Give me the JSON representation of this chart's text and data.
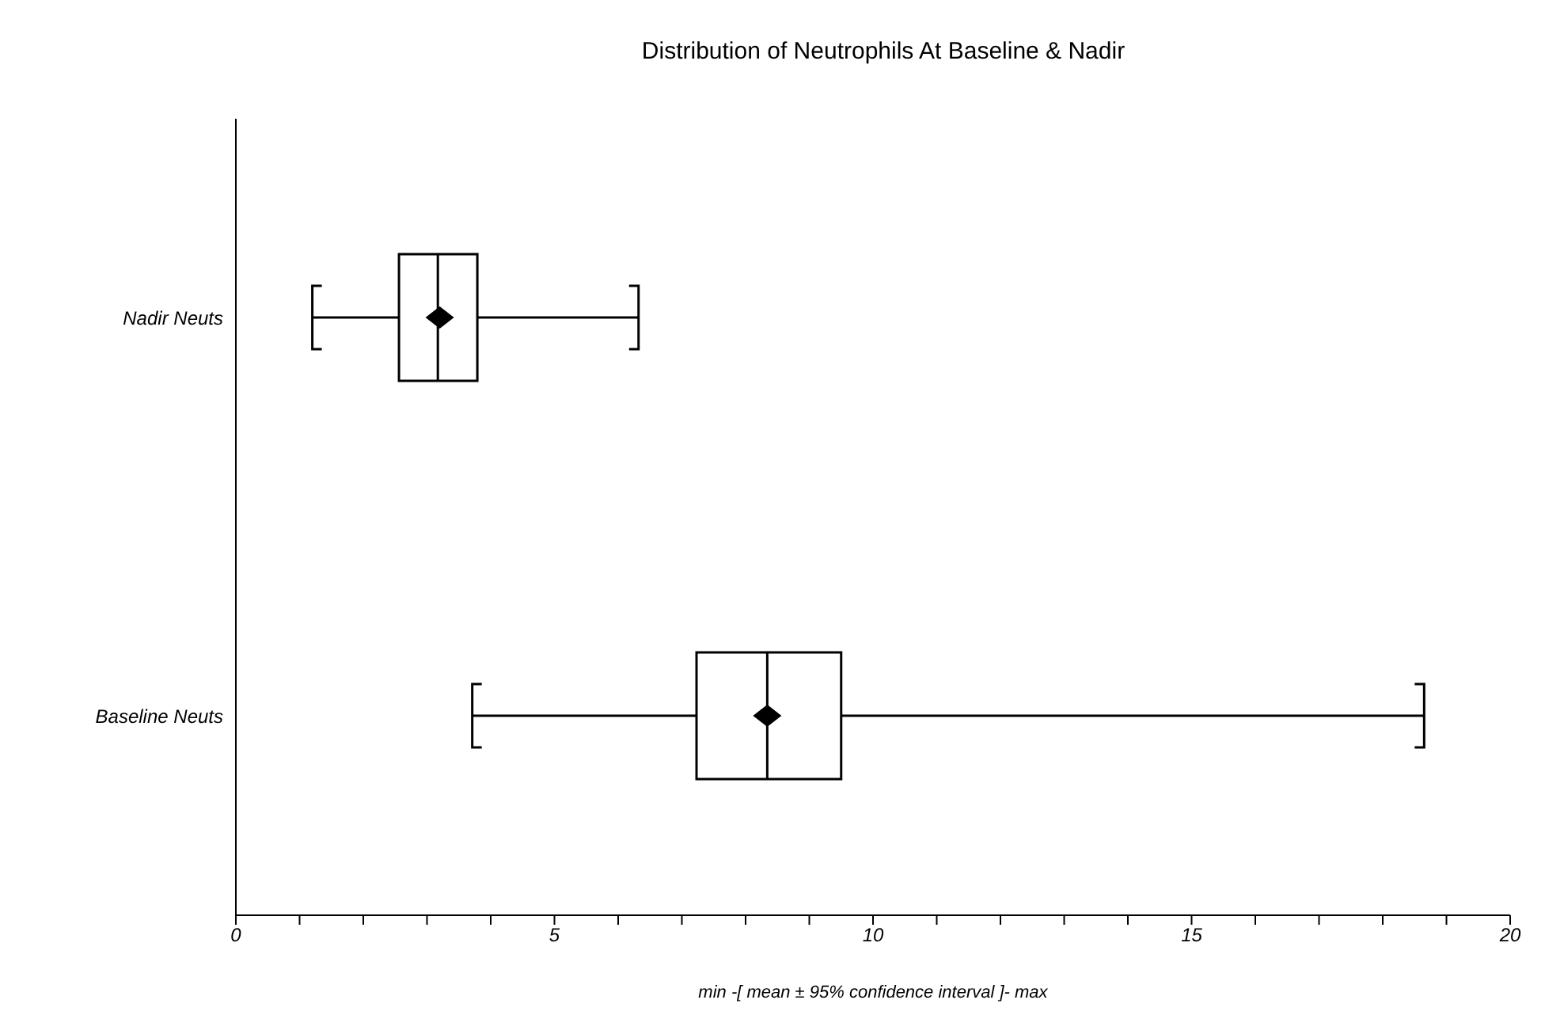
{
  "chart_data": {
    "type": "box",
    "title": "Distribution of Neutrophils At Baseline & Nadir",
    "xlabel": "min -[ mean ± 95% confidence interval ]- max",
    "orientation": "horizontal",
    "categories": [
      "Nadir Neuts",
      "Baseline Neuts"
    ],
    "boxes": [
      {
        "low": 1.2,
        "q1": 2.56,
        "median": 3.17,
        "q3": 3.79,
        "high": 6.32,
        "mean": 3.2
      },
      {
        "low": 3.71,
        "q1": 7.23,
        "median": 8.34,
        "q3": 9.5,
        "high": 18.65,
        "mean": 8.34
      }
    ],
    "xlim": [
      0,
      20
    ],
    "xticks": [
      0,
      {
        "value": 1,
        "label": null
      },
      {
        "value": 2,
        "label": null
      },
      {
        "value": 3,
        "label": null
      },
      {
        "value": 4,
        "label": null
      },
      5,
      {
        "value": 6,
        "label": null
      },
      {
        "value": 7,
        "label": null
      },
      {
        "value": 8,
        "label": null
      },
      {
        "value": 9,
        "label": null
      },
      10,
      {
        "value": 11,
        "label": null
      },
      {
        "value": 12,
        "label": null
      },
      {
        "value": 13,
        "label": null
      },
      {
        "value": 14,
        "label": null
      },
      15,
      {
        "value": 16,
        "label": null
      },
      {
        "value": 17,
        "label": null
      },
      {
        "value": 18,
        "label": null
      },
      {
        "value": 19,
        "label": null
      },
      20
    ],
    "grid": false
  }
}
